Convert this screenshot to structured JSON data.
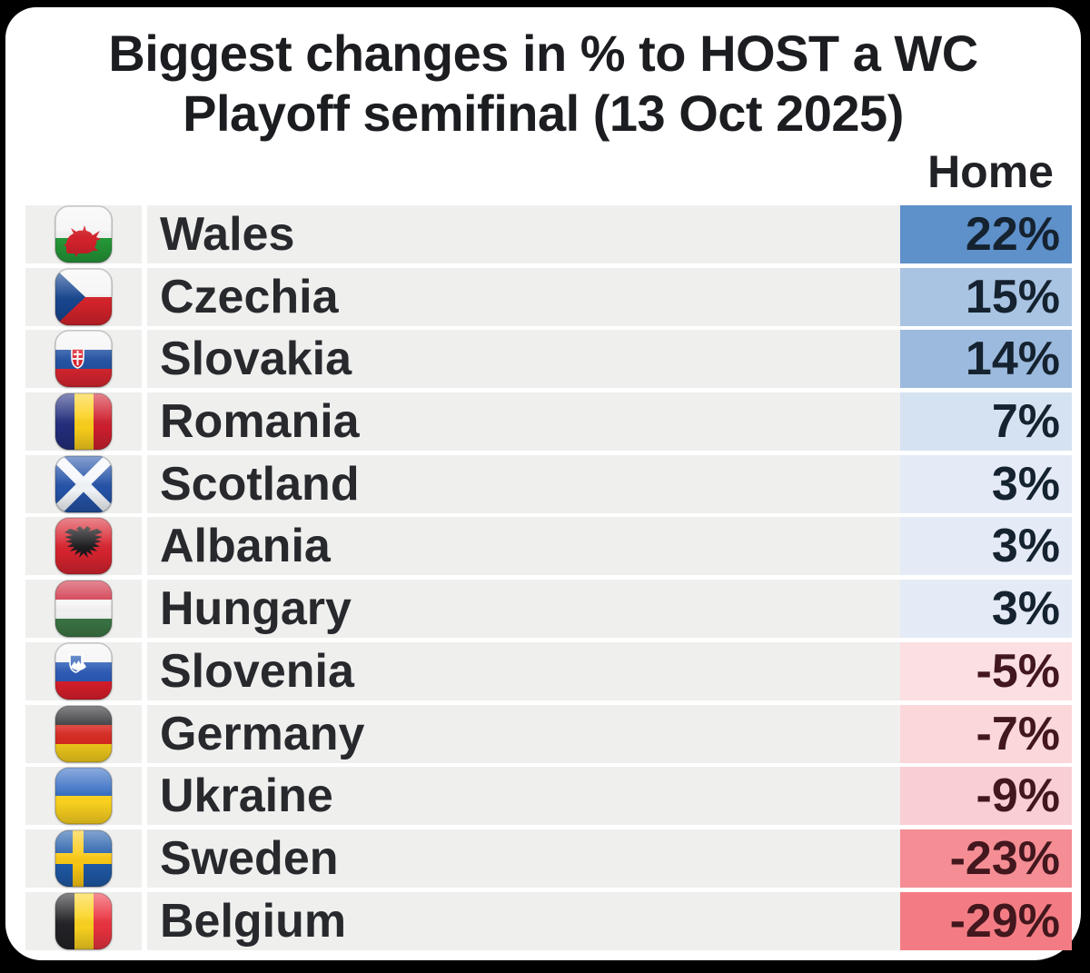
{
  "title": {
    "line1": "Biggest changes in % to HOST a WC",
    "line2": "Playoff semifinal (13 Oct 2025)"
  },
  "table": {
    "value_column_header": "Home"
  },
  "colors": {
    "frame_background": "#000000",
    "card_background": "#ffffff",
    "row_band": "#efefee",
    "title_text": "#1b1d20",
    "team_text": "#27292d",
    "positive_value_text": "#15222f",
    "negative_value_text": "#42171d"
  },
  "chart_data": {
    "type": "table",
    "title": "Biggest changes in % to HOST a WC Playoff semifinal (13 Oct 2025)",
    "columns": [
      "Team",
      "Home"
    ],
    "legend_position": "none",
    "rows": [
      {
        "team": "Wales",
        "flag": "wales",
        "home_change_pct": 22,
        "display": "22%",
        "cell_color": "#5e90ca"
      },
      {
        "team": "Czechia",
        "flag": "czechia",
        "home_change_pct": 15,
        "display": "15%",
        "cell_color": "#a9c4e3"
      },
      {
        "team": "Slovakia",
        "flag": "slovakia",
        "home_change_pct": 14,
        "display": "14%",
        "cell_color": "#9cbade"
      },
      {
        "team": "Romania",
        "flag": "romania",
        "home_change_pct": 7,
        "display": "7%",
        "cell_color": "#d5e2f1"
      },
      {
        "team": "Scotland",
        "flag": "scotland",
        "home_change_pct": 3,
        "display": "3%",
        "cell_color": "#e4ebf6"
      },
      {
        "team": "Albania",
        "flag": "albania",
        "home_change_pct": 3,
        "display": "3%",
        "cell_color": "#e4ebf6"
      },
      {
        "team": "Hungary",
        "flag": "hungary",
        "home_change_pct": 3,
        "display": "3%",
        "cell_color": "#e4ebf6"
      },
      {
        "team": "Slovenia",
        "flag": "slovenia",
        "home_change_pct": -5,
        "display": "-5%",
        "cell_color": "#fcdfe2"
      },
      {
        "team": "Germany",
        "flag": "germany",
        "home_change_pct": -7,
        "display": "-7%",
        "cell_color": "#fbd7da"
      },
      {
        "team": "Ukraine",
        "flag": "ukraine",
        "home_change_pct": -9,
        "display": "-9%",
        "cell_color": "#facfd4"
      },
      {
        "team": "Sweden",
        "flag": "sweden",
        "home_change_pct": -23,
        "display": "-23%",
        "cell_color": "#f58d94"
      },
      {
        "team": "Belgium",
        "flag": "belgium",
        "home_change_pct": -29,
        "display": "-29%",
        "cell_color": "#f37c84"
      }
    ]
  }
}
